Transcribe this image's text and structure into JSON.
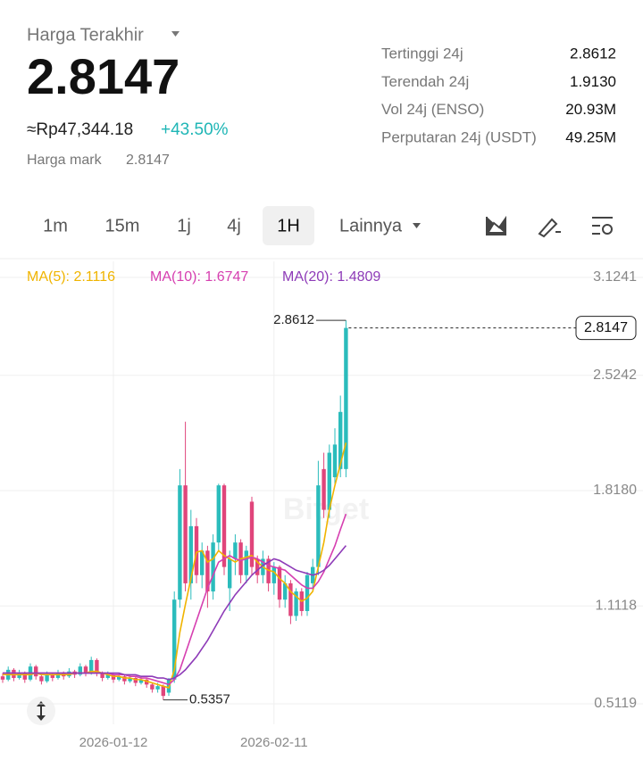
{
  "header": {
    "title": "Harga Terakhir",
    "price": "2.8147",
    "fiat": "≈Rp47,344.18",
    "change": "+43.50%",
    "mark_label": "Harga mark",
    "mark_value": "2.8147"
  },
  "stats": [
    {
      "label": "Tertinggi 24j",
      "value": "2.8612"
    },
    {
      "label": "Terendah 24j",
      "value": "1.9130"
    },
    {
      "label": "Vol 24j (ENSO)",
      "value": "20.93M"
    },
    {
      "label": "Perputaran 24j (USDT)",
      "value": "49.25M"
    }
  ],
  "tabs": [
    "1m",
    "15m",
    "1j",
    "4j",
    "1H",
    "Lainnya"
  ],
  "chart_data": {
    "type": "candlestick",
    "watermark": "Bitget",
    "categories": [
      null,
      null,
      null,
      null,
      null,
      null,
      null,
      null,
      null,
      null,
      null,
      null,
      null,
      null,
      null,
      null,
      null,
      null,
      null,
      null,
      "2026-01-12",
      null,
      null,
      null,
      null,
      null,
      null,
      null,
      null,
      null,
      null,
      null,
      null,
      null,
      null,
      null,
      null,
      null,
      null,
      null,
      null,
      null,
      null,
      null,
      null,
      null,
      null,
      null,
      null,
      "2026-02-11",
      null,
      null,
      null,
      null,
      null,
      null,
      null,
      null,
      null,
      null,
      null,
      null,
      null
    ],
    "ohlc": {
      "up_color": "#2bbcbc",
      "down_color": "#e0457b",
      "open": [
        0.68,
        0.66,
        0.72,
        0.67,
        0.7,
        0.66,
        0.74,
        0.68,
        0.65,
        0.69,
        0.67,
        0.7,
        0.68,
        0.71,
        0.69,
        0.74,
        0.7,
        0.78,
        0.7,
        0.67,
        0.69,
        0.66,
        0.68,
        0.65,
        0.67,
        0.64,
        0.66,
        0.63,
        0.6,
        0.62,
        0.58,
        0.66,
        1.15,
        1.85,
        1.25,
        1.6,
        1.3,
        1.45,
        1.2,
        1.5,
        1.85,
        1.22,
        1.4,
        1.5,
        1.3,
        1.75,
        1.4,
        1.3,
        1.4,
        1.25,
        1.35,
        1.15,
        1.25,
        1.05,
        1.2,
        1.08,
        1.25,
        1.35,
        1.95,
        1.7,
        1.9,
        1.95,
        1.95
      ],
      "high": [
        0.7,
        0.74,
        0.73,
        0.72,
        0.71,
        0.76,
        0.75,
        0.69,
        0.71,
        0.7,
        0.72,
        0.71,
        0.73,
        0.72,
        0.76,
        0.75,
        0.8,
        0.79,
        0.71,
        0.71,
        0.7,
        0.7,
        0.69,
        0.69,
        0.68,
        0.68,
        0.67,
        0.64,
        0.64,
        0.63,
        0.67,
        1.2,
        1.95,
        2.24,
        1.7,
        1.65,
        1.5,
        1.48,
        1.55,
        1.86,
        1.86,
        1.45,
        1.55,
        1.52,
        1.48,
        1.78,
        1.42,
        1.45,
        1.42,
        1.38,
        1.36,
        1.3,
        1.27,
        1.22,
        1.22,
        1.32,
        1.4,
        2.0,
        2.05,
        2.1,
        2.2,
        2.4,
        2.8612
      ],
      "low": [
        0.64,
        0.65,
        0.65,
        0.66,
        0.64,
        0.65,
        0.66,
        0.63,
        0.64,
        0.65,
        0.66,
        0.66,
        0.67,
        0.67,
        0.68,
        0.68,
        0.69,
        0.68,
        0.65,
        0.66,
        0.64,
        0.65,
        0.63,
        0.64,
        0.62,
        0.63,
        0.61,
        0.58,
        0.58,
        0.5357,
        0.56,
        0.64,
        1.1,
        1.2,
        1.15,
        1.25,
        1.22,
        1.1,
        1.15,
        1.45,
        1.3,
        1.08,
        1.3,
        1.25,
        1.25,
        1.3,
        1.25,
        1.25,
        1.2,
        1.18,
        1.1,
        1.1,
        1.0,
        1.02,
        1.05,
        1.05,
        1.2,
        1.3,
        1.65,
        1.65,
        1.85,
        1.9,
        1.9
      ],
      "close": [
        0.66,
        0.72,
        0.67,
        0.7,
        0.66,
        0.74,
        0.68,
        0.65,
        0.69,
        0.67,
        0.7,
        0.68,
        0.71,
        0.69,
        0.74,
        0.7,
        0.78,
        0.7,
        0.67,
        0.69,
        0.66,
        0.68,
        0.65,
        0.67,
        0.64,
        0.66,
        0.63,
        0.6,
        0.62,
        0.56,
        0.66,
        1.15,
        1.85,
        1.25,
        1.6,
        1.3,
        1.45,
        1.2,
        1.5,
        1.85,
        1.35,
        1.4,
        1.5,
        1.3,
        1.45,
        1.35,
        1.3,
        1.4,
        1.25,
        1.35,
        1.15,
        1.25,
        1.05,
        1.2,
        1.08,
        1.3,
        1.35,
        1.85,
        1.7,
        2.05,
        2.1,
        2.3,
        2.8147
      ]
    },
    "series": [
      {
        "name": "MA(5): 2.1116",
        "color": "#f0b400",
        "values": [
          0.69,
          0.69,
          0.69,
          0.69,
          0.69,
          0.69,
          0.7,
          0.69,
          0.69,
          0.69,
          0.69,
          0.69,
          0.69,
          0.7,
          0.7,
          0.7,
          0.71,
          0.71,
          0.7,
          0.69,
          0.68,
          0.68,
          0.67,
          0.67,
          0.66,
          0.66,
          0.65,
          0.64,
          0.63,
          0.62,
          0.61,
          0.72,
          0.95,
          1.12,
          1.28,
          1.44,
          1.45,
          1.38,
          1.4,
          1.45,
          1.42,
          1.4,
          1.38,
          1.4,
          1.41,
          1.42,
          1.38,
          1.35,
          1.33,
          1.32,
          1.28,
          1.25,
          1.2,
          1.17,
          1.14,
          1.16,
          1.2,
          1.35,
          1.5,
          1.7,
          1.85,
          1.98,
          2.1116
        ]
      },
      {
        "name": "MA(10): 1.6747",
        "color": "#d63fb0",
        "values": [
          0.7,
          0.7,
          0.7,
          0.7,
          0.7,
          0.7,
          0.7,
          0.7,
          0.7,
          0.7,
          0.7,
          0.7,
          0.7,
          0.7,
          0.7,
          0.7,
          0.7,
          0.7,
          0.7,
          0.7,
          0.69,
          0.69,
          0.69,
          0.68,
          0.68,
          0.67,
          0.67,
          0.66,
          0.65,
          0.64,
          0.63,
          0.66,
          0.72,
          0.82,
          0.92,
          1.02,
          1.12,
          1.22,
          1.3,
          1.38,
          1.4,
          1.42,
          1.4,
          1.39,
          1.4,
          1.41,
          1.4,
          1.38,
          1.36,
          1.35,
          1.34,
          1.33,
          1.3,
          1.27,
          1.24,
          1.22,
          1.22,
          1.26,
          1.32,
          1.4,
          1.48,
          1.58,
          1.6747
        ]
      },
      {
        "name": "MA(20): 1.4809",
        "color": "#8e3bb8",
        "values": [
          0.7,
          0.7,
          0.7,
          0.7,
          0.7,
          0.7,
          0.7,
          0.7,
          0.7,
          0.7,
          0.7,
          0.7,
          0.7,
          0.7,
          0.7,
          0.7,
          0.7,
          0.7,
          0.7,
          0.7,
          0.7,
          0.7,
          0.69,
          0.69,
          0.69,
          0.68,
          0.68,
          0.68,
          0.67,
          0.67,
          0.66,
          0.67,
          0.69,
          0.72,
          0.76,
          0.8,
          0.85,
          0.9,
          0.96,
          1.02,
          1.08,
          1.13,
          1.18,
          1.22,
          1.26,
          1.3,
          1.33,
          1.36,
          1.38,
          1.4,
          1.39,
          1.37,
          1.35,
          1.33,
          1.32,
          1.31,
          1.3,
          1.31,
          1.33,
          1.36,
          1.4,
          1.44,
          1.4809
        ]
      }
    ],
    "ylim": [
      0.386,
      3.2225
    ],
    "yticks": [
      0.5119,
      1.1118,
      {
        "value": 1.818,
        "label": "1.8180"
      },
      2.5242,
      3.1241
    ],
    "max_marker": 2.8612,
    "min_marker": 0.5357,
    "last_price": 2.8147
  }
}
